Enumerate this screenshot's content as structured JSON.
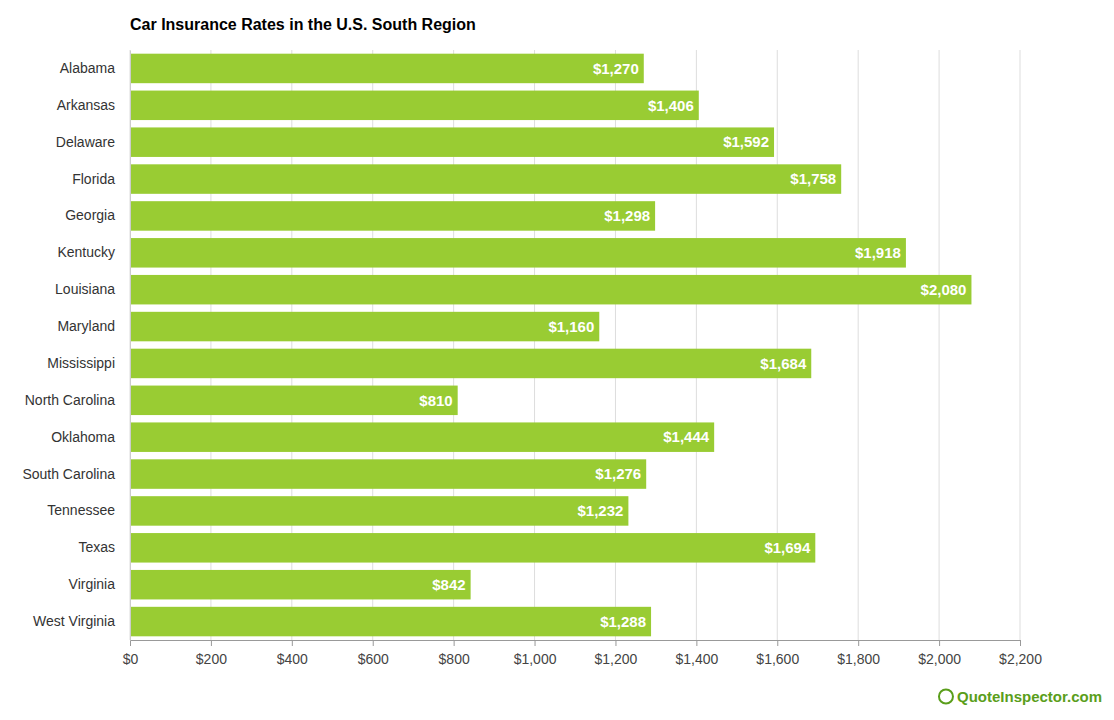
{
  "chart_data": {
    "type": "bar",
    "orientation": "horizontal",
    "title": "Car Insurance Rates in the U.S. South Region",
    "categories": [
      "Alabama",
      "Arkansas",
      "Delaware",
      "Florida",
      "Georgia",
      "Kentucky",
      "Louisiana",
      "Maryland",
      "Mississippi",
      "North Carolina",
      "Oklahoma",
      "South Carolina",
      "Tennessee",
      "Texas",
      "Virginia",
      "West Virginia"
    ],
    "values": [
      1270,
      1406,
      1592,
      1758,
      1298,
      1918,
      2080,
      1160,
      1684,
      810,
      1444,
      1276,
      1232,
      1694,
      842,
      1288
    ],
    "value_labels": [
      "$1,270",
      "$1,406",
      "$1,592",
      "$1,758",
      "$1,298",
      "$1,918",
      "$2,080",
      "$1,160",
      "$1,684",
      "$810",
      "$1,444",
      "$1,276",
      "$1,232",
      "$1,694",
      "$842",
      "$1,288"
    ],
    "data_labels": true,
    "color": "#99cc33",
    "xlim": [
      0,
      2200
    ],
    "xticks": [
      {
        "value": 0,
        "label": "$0"
      },
      {
        "value": 200,
        "label": "$200"
      },
      {
        "value": 400,
        "label": "$400"
      },
      {
        "value": 600,
        "label": "$600"
      },
      {
        "value": 800,
        "label": "$800"
      },
      {
        "value": 1000,
        "label": "$1,000"
      },
      {
        "value": 1200,
        "label": "$1,200"
      },
      {
        "value": 1400,
        "label": "$1,400"
      },
      {
        "value": 1600,
        "label": "$1,600"
      },
      {
        "value": 1800,
        "label": "$1,800"
      },
      {
        "value": 2000,
        "label": "$2,000"
      },
      {
        "value": 2200,
        "label": "$2,200"
      }
    ],
    "grid": true,
    "annotations": [
      "QuoteInspector.com"
    ]
  }
}
